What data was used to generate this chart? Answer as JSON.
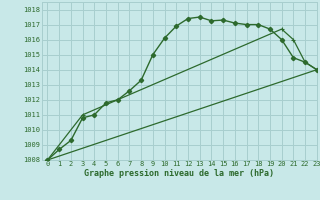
{
  "title": "Graphe pression niveau de la mer (hPa)",
  "xlim": [
    -0.5,
    23
  ],
  "ylim": [
    1008,
    1018.5
  ],
  "xticks": [
    0,
    1,
    2,
    3,
    4,
    5,
    6,
    7,
    8,
    9,
    10,
    11,
    12,
    13,
    14,
    15,
    16,
    17,
    18,
    19,
    20,
    21,
    22,
    23
  ],
  "yticks": [
    1008,
    1009,
    1010,
    1011,
    1012,
    1013,
    1014,
    1015,
    1016,
    1017,
    1018
  ],
  "line1_x": [
    0,
    1,
    2,
    3,
    4,
    5,
    6,
    7,
    8,
    9,
    10,
    11,
    12,
    13,
    14,
    15,
    16,
    17,
    18,
    19,
    20,
    21,
    22,
    23
  ],
  "line1_y": [
    1008.0,
    1008.7,
    1009.3,
    1010.8,
    1011.0,
    1011.8,
    1012.0,
    1012.6,
    1013.3,
    1015.0,
    1016.1,
    1016.9,
    1017.4,
    1017.5,
    1017.25,
    1017.3,
    1017.1,
    1017.0,
    1017.0,
    1016.7,
    1016.0,
    1014.8,
    1014.5,
    1014.0
  ],
  "line2_x": [
    0,
    3,
    20,
    21,
    22,
    23
  ],
  "line2_y": [
    1008.0,
    1011.0,
    1016.7,
    1016.0,
    1014.5,
    1014.0
  ],
  "line3_x": [
    0,
    23
  ],
  "line3_y": [
    1008.0,
    1014.0
  ],
  "line_color": "#2d6a2d",
  "bg_color": "#c8e8e8",
  "grid_color": "#a8cece",
  "label_color": "#2d6a2d",
  "font_family": "monospace"
}
